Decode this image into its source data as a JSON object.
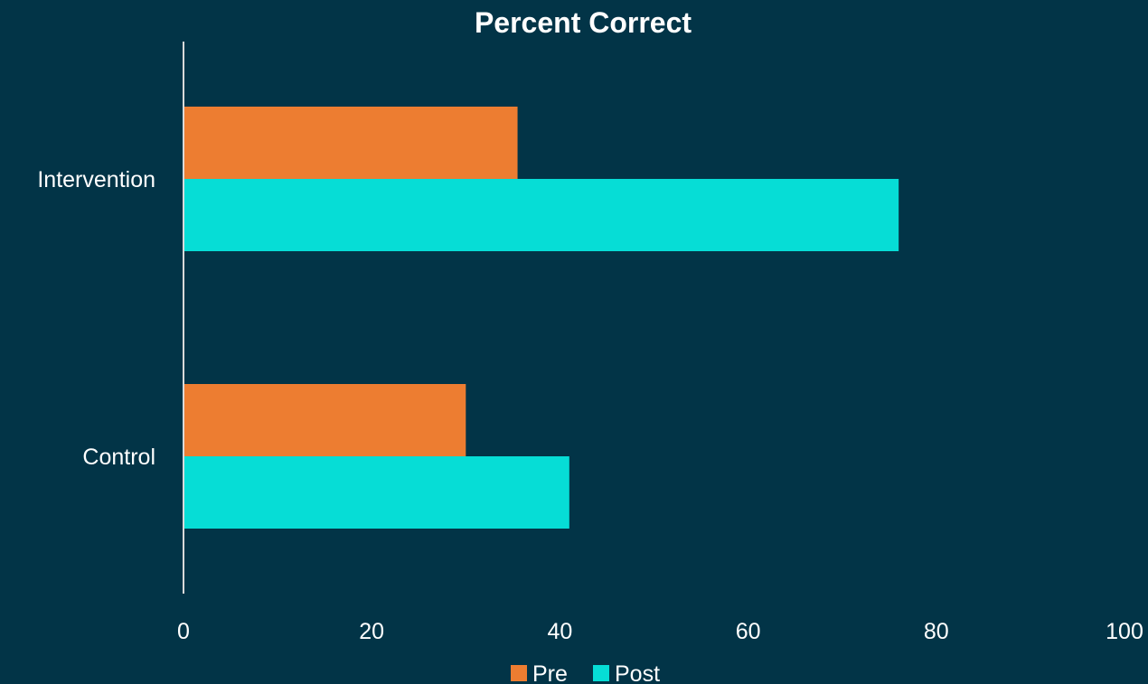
{
  "chart_data": {
    "type": "bar",
    "orientation": "horizontal",
    "title": "Percent Correct",
    "categories": [
      "Intervention",
      "Control"
    ],
    "series": [
      {
        "name": "Pre",
        "color": "#ED7D31",
        "values": [
          35.5,
          30
        ]
      },
      {
        "name": "Post",
        "color": "#06DDD6",
        "values": [
          76,
          41
        ]
      }
    ],
    "xlim": [
      0,
      100
    ],
    "xticks": [
      0,
      20,
      40,
      60,
      80,
      100
    ],
    "grid": false,
    "legend": "bottom-center",
    "background": "#023447",
    "axis_color": "#D9D9D9",
    "text_color": "#FFFFFF"
  }
}
